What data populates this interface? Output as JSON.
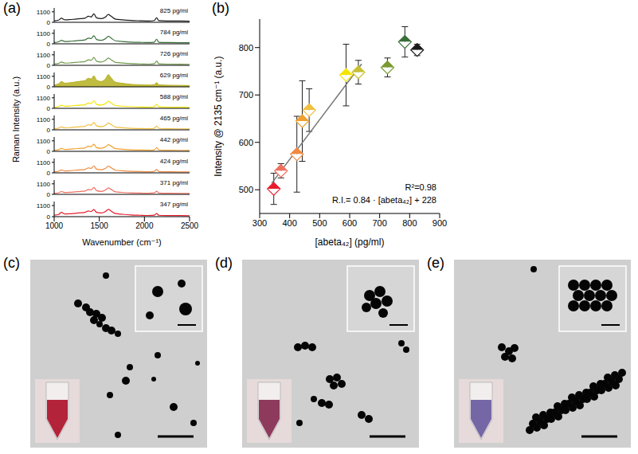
{
  "chart_data": [
    {
      "type": "line",
      "panel_label": "(a)",
      "x_label": "Wavenumber (cm⁻¹)",
      "y_label": "Raman Intensity (a.u.)",
      "x": [
        1000,
        1050,
        1080,
        1120,
        1170,
        1230,
        1290,
        1340,
        1380,
        1410,
        1440,
        1470,
        1520,
        1570,
        1600,
        1630,
        1680,
        1750,
        1850,
        1950,
        2050,
        2110,
        2135,
        2160,
        2250,
        2400,
        2500
      ],
      "xlim": [
        1000,
        2500
      ],
      "xticks": [
        1000,
        1500,
        2000,
        2500
      ],
      "ylim": [
        0,
        1500
      ],
      "yticks": [
        0,
        1100
      ],
      "series": [
        {
          "name": "825 pg/ml",
          "color": "#1a1a1a",
          "type": "line",
          "values": [
            150,
            230,
            420,
            260,
            280,
            330,
            380,
            420,
            640,
            560,
            880,
            470,
            380,
            560,
            820,
            640,
            330,
            260,
            190,
            160,
            140,
            190,
            470,
            170,
            140,
            130,
            120
          ]
        },
        {
          "name": "784 pg/ml",
          "color": "#3a6e3a",
          "type": "line",
          "values": [
            140,
            210,
            360,
            240,
            260,
            310,
            360,
            400,
            600,
            540,
            850,
            450,
            360,
            540,
            780,
            600,
            310,
            250,
            180,
            150,
            130,
            180,
            480,
            160,
            130,
            120,
            110
          ]
        },
        {
          "name": "726 pg/ml",
          "color": "#6f9a4a",
          "type": "line",
          "values": [
            130,
            200,
            340,
            230,
            250,
            300,
            350,
            390,
            580,
            520,
            820,
            430,
            350,
            520,
            760,
            590,
            300,
            240,
            170,
            145,
            125,
            175,
            450,
            155,
            125,
            115,
            105
          ]
        },
        {
          "name": "629 pg/ml",
          "color": "#b5b020",
          "type": "area",
          "values": [
            200,
            320,
            560,
            380,
            420,
            500,
            580,
            650,
            900,
            820,
            1150,
            700,
            560,
            850,
            1280,
            950,
            480,
            380,
            260,
            210,
            180,
            230,
            440,
            210,
            170,
            150,
            140
          ]
        },
        {
          "name": "588 pg/ml",
          "color": "#f2e600",
          "type": "line",
          "values": [
            120,
            190,
            330,
            220,
            240,
            290,
            340,
            370,
            560,
            500,
            790,
            410,
            340,
            500,
            740,
            570,
            290,
            230,
            165,
            140,
            120,
            170,
            430,
            150,
            120,
            110,
            100
          ]
        },
        {
          "name": "465 pg/ml",
          "color": "#f0c040",
          "type": "line",
          "values": [
            115,
            180,
            310,
            210,
            230,
            280,
            330,
            360,
            540,
            490,
            760,
            400,
            330,
            480,
            720,
            560,
            280,
            225,
            160,
            135,
            115,
            160,
            390,
            145,
            115,
            105,
            95
          ]
        },
        {
          "name": "442 pg/ml",
          "color": "#f0a030",
          "type": "line",
          "values": [
            115,
            175,
            300,
            205,
            225,
            270,
            320,
            350,
            530,
            480,
            740,
            390,
            320,
            470,
            700,
            550,
            275,
            220,
            160,
            135,
            115,
            160,
            380,
            145,
            115,
            105,
            95
          ]
        },
        {
          "name": "424 pg/ml",
          "color": "#f08a40",
          "type": "line",
          "values": [
            110,
            170,
            300,
            200,
            220,
            270,
            320,
            350,
            520,
            470,
            730,
            380,
            320,
            470,
            690,
            540,
            270,
            215,
            155,
            130,
            110,
            155,
            350,
            140,
            110,
            100,
            90
          ]
        },
        {
          "name": "371 pg/ml",
          "color": "#f07060",
          "type": "line",
          "values": [
            110,
            170,
            290,
            200,
            215,
            260,
            310,
            340,
            510,
            460,
            720,
            380,
            310,
            460,
            680,
            530,
            265,
            210,
            150,
            130,
            110,
            150,
            330,
            135,
            110,
            100,
            90
          ]
        },
        {
          "name": "347 pg/ml",
          "color": "#e81c2c",
          "type": "line",
          "values": [
            140,
            220,
            420,
            260,
            280,
            330,
            380,
            420,
            560,
            500,
            700,
            420,
            360,
            520,
            720,
            560,
            300,
            240,
            170,
            140,
            120,
            150,
            300,
            140,
            115,
            105,
            95
          ]
        }
      ]
    },
    {
      "type": "scatter",
      "panel_label": "(b)",
      "x_label": "[abeta₄₂] (pg/ml)",
      "y_label": "Intensity @ 2135 cm⁻¹ (a.u.)",
      "x": [
        347,
        371,
        424,
        442,
        465,
        588,
        629,
        726,
        784,
        825
      ],
      "values": [
        502,
        540,
        575,
        645,
        668,
        742,
        748,
        758,
        812,
        795
      ],
      "error": [
        33,
        15,
        80,
        85,
        45,
        65,
        25,
        20,
        32,
        12
      ],
      "colors": [
        "#e81c2c",
        "#f07060",
        "#f08a40",
        "#f0a030",
        "#f0c040",
        "#f2e600",
        "#c8c030",
        "#7a9a30",
        "#3a6e3a",
        "#1a1a1a"
      ],
      "marker": "diamond",
      "xlim": [
        300,
        900
      ],
      "xticks": [
        300,
        400,
        500,
        600,
        700,
        800,
        900
      ],
      "ylim": [
        450,
        860
      ],
      "yticks": [
        500,
        600,
        700,
        800
      ],
      "fit": {
        "x": [
          340,
          640
        ],
        "values": [
          513.6,
          765.6
        ]
      },
      "annotations": [
        "R²=0.98",
        "R.I.= 0.84 · [abeta₄₂] + 228"
      ]
    }
  ],
  "images": [
    {
      "panel_label": "(c)"
    },
    {
      "panel_label": "(d)"
    },
    {
      "panel_label": "(e)"
    }
  ]
}
